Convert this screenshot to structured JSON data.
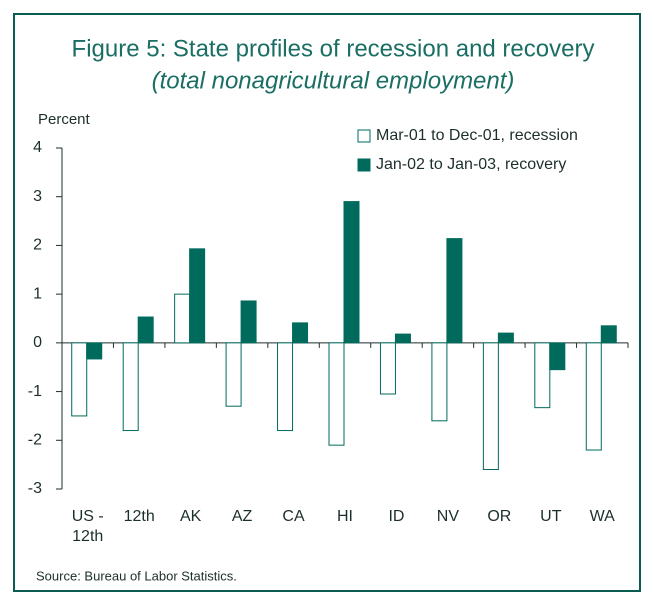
{
  "chart_data": {
    "type": "bar",
    "title": "Figure 5: State profiles of recession and recovery",
    "subtitle": "(total nonagricultural employment)",
    "y_label": "Percent",
    "source": "Source: Bureau of Labor Statistics.",
    "categories": [
      "US - 12th",
      "12th",
      "AK",
      "AZ",
      "CA",
      "HI",
      "ID",
      "NV",
      "OR",
      "UT",
      "WA"
    ],
    "series": [
      {
        "name": "Mar-01 to Dec-01, recession",
        "color": "#ffffff",
        "values": [
          -1.5,
          -1.8,
          1.0,
          -1.3,
          -1.8,
          -2.1,
          -1.05,
          -1.6,
          -2.6,
          -1.33,
          -2.2
        ]
      },
      {
        "name": "Jan-02 to Jan-03, recovery",
        "color": "#006a5d",
        "values": [
          -0.33,
          0.53,
          1.93,
          0.86,
          0.41,
          2.9,
          0.18,
          2.14,
          0.2,
          -0.55,
          0.35
        ]
      }
    ],
    "ylim": [
      -3,
      4
    ],
    "yticks": [
      -3,
      -2,
      -1,
      0,
      1,
      2,
      3,
      4
    ],
    "legend": "top-right"
  }
}
